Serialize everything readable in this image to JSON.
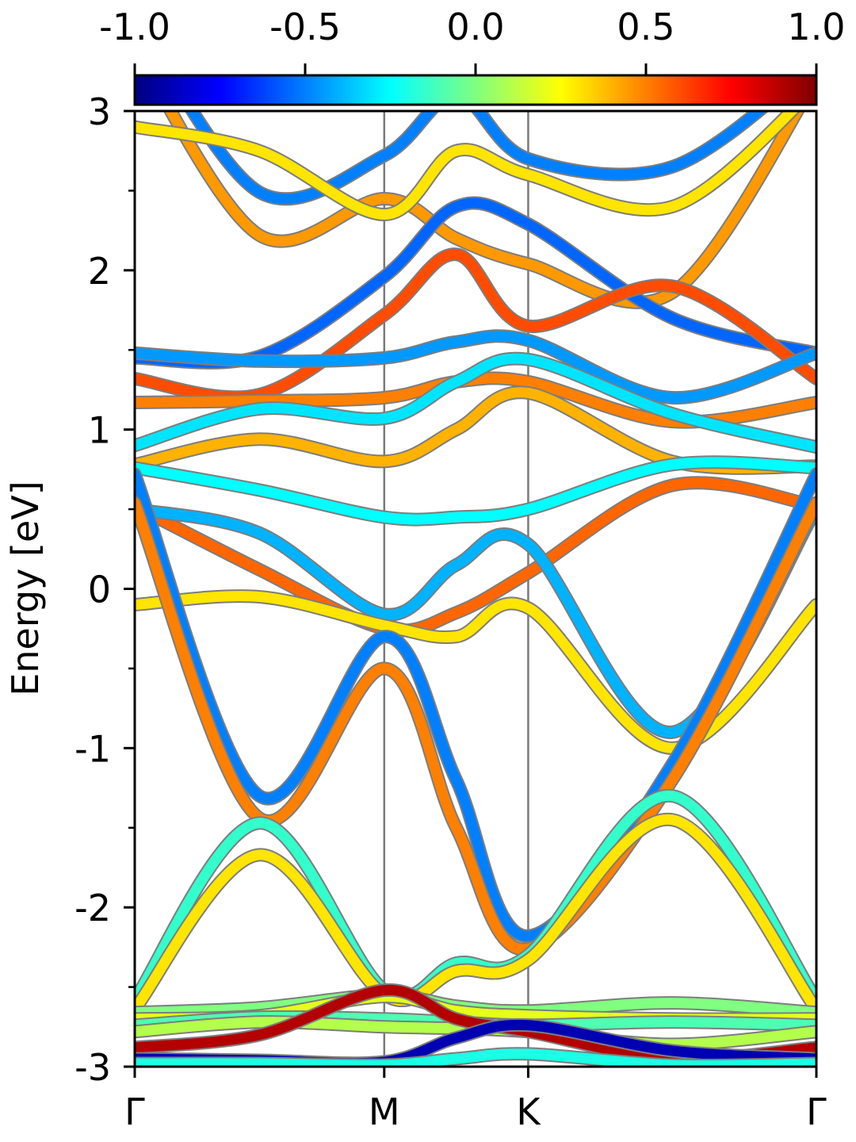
{
  "chart_data": {
    "type": "line",
    "ylabel": "Energy [eV]",
    "ylim": [
      -3,
      3
    ],
    "yticks": [
      "3",
      "2",
      "1",
      "0",
      "-1",
      "-2",
      "-3"
    ],
    "ytick_values": [
      3,
      2,
      1,
      0,
      -1,
      -2,
      -3
    ],
    "kpath": {
      "labels": [
        "Γ",
        "M",
        "K",
        "Γ"
      ],
      "positions": [
        0,
        1,
        1.577,
        2.732
      ]
    },
    "colorbar": {
      "colormap": "jet",
      "range": [
        -1,
        1
      ],
      "ticks": [
        "-1.0",
        "-0.5",
        "0.0",
        "0.5",
        "1.0"
      ],
      "tick_values": [
        -1,
        -0.5,
        0,
        0.5,
        1
      ]
    },
    "grid": false,
    "bands": [
      {
        "energies": [
          3.6,
          2.49,
          2.72,
          3.1,
          2.7,
          2.65,
          3.3
        ],
        "color_value": -0.5
      },
      {
        "energies": [
          3.4,
          2.22,
          2.45,
          2.2,
          2.04,
          1.86,
          3.2
        ],
        "color_value": 0.45
      },
      {
        "energies": [
          2.9,
          2.75,
          2.35,
          2.75,
          2.6,
          2.4,
          3.15
        ],
        "color_value": 0.3
      },
      {
        "energies": [
          1.45,
          1.46,
          1.96,
          2.4,
          2.29,
          1.7,
          1.48
        ],
        "color_value": -0.55
      },
      {
        "energies": [
          1.32,
          1.22,
          1.72,
          2.1,
          1.65,
          1.9,
          1.32
        ],
        "color_value": 0.6
      },
      {
        "energies": [
          1.48,
          1.43,
          1.45,
          1.55,
          1.56,
          1.2,
          1.48
        ],
        "color_value": -0.45
      },
      {
        "energies": [
          1.17,
          1.18,
          1.2,
          1.3,
          1.3,
          1.05,
          1.17
        ],
        "color_value": 0.5
      },
      {
        "energies": [
          0.9,
          1.13,
          1.07,
          1.3,
          1.44,
          1.1,
          0.89
        ],
        "color_value": -0.3
      },
      {
        "energies": [
          0.78,
          0.94,
          0.8,
          1.0,
          1.23,
          0.8,
          0.77
        ],
        "color_value": 0.4
      },
      {
        "energies": [
          0.76,
          0.62,
          0.45,
          0.45,
          0.5,
          0.78,
          0.76
        ],
        "color_value": -0.25
      },
      {
        "energies": [
          0.52,
          0.12,
          -0.25,
          -0.15,
          0.1,
          0.65,
          0.52
        ],
        "color_value": 0.55
      },
      {
        "energies": [
          0.5,
          0.35,
          -0.16,
          0.15,
          0.28,
          -0.9,
          0.5
        ],
        "color_value": -0.4
      },
      {
        "energies": [
          -0.1,
          -0.05,
          -0.23,
          -0.3,
          -0.12,
          -1.0,
          -0.1
        ],
        "color_value": 0.3
      },
      {
        "energies": [
          0.72,
          -1.3,
          -0.3,
          -1.2,
          -2.18,
          -1.1,
          0.72
        ],
        "color_value": -0.5
      },
      {
        "energies": [
          0.54,
          -1.44,
          -0.5,
          -1.5,
          -2.26,
          -1.2,
          0.54
        ],
        "color_value": 0.5
      },
      {
        "energies": [
          -2.58,
          -1.47,
          -2.52,
          -2.35,
          -2.3,
          -1.3,
          -2.58
        ],
        "color_value": -0.15
      },
      {
        "energies": [
          -2.64,
          -1.67,
          -2.55,
          -2.4,
          -2.33,
          -1.45,
          -2.64
        ],
        "color_value": 0.3
      },
      {
        "energies": [
          -2.66,
          -2.63,
          -2.55,
          -2.62,
          -2.65,
          -2.6,
          -2.66
        ],
        "color_value": 0.0
      },
      {
        "energies": [
          -2.7,
          -2.68,
          -2.56,
          -2.65,
          -2.68,
          -2.7,
          -2.7
        ],
        "color_value": 0.2
      },
      {
        "energies": [
          -2.74,
          -2.69,
          -2.7,
          -2.72,
          -2.74,
          -2.72,
          -2.74
        ],
        "color_value": -0.1
      },
      {
        "energies": [
          -2.78,
          -2.72,
          -2.75,
          -2.76,
          -2.78,
          -2.86,
          -2.78
        ],
        "color_value": 0.1
      },
      {
        "energies": [
          -2.88,
          -2.8,
          -2.52,
          -2.7,
          -2.78,
          -2.95,
          -2.88
        ],
        "color_value": 0.9
      },
      {
        "energies": [
          -2.95,
          -2.96,
          -2.97,
          -2.82,
          -2.74,
          -2.9,
          -2.95
        ],
        "color_value": -0.9
      },
      {
        "energies": [
          -2.98,
          -2.98,
          -2.99,
          -2.95,
          -2.92,
          -2.99,
          -2.98
        ],
        "color_value": -0.2
      }
    ]
  }
}
